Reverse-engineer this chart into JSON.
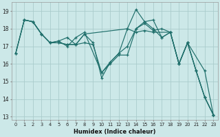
{
  "xlabel": "Humidex (Indice chaleur)",
  "xlim": [
    -0.5,
    23.5
  ],
  "ylim": [
    12.8,
    19.5
  ],
  "yticks": [
    13,
    14,
    15,
    16,
    17,
    18,
    19
  ],
  "xticks": [
    0,
    1,
    2,
    3,
    4,
    5,
    6,
    7,
    8,
    9,
    10,
    11,
    12,
    13,
    14,
    15,
    16,
    17,
    18,
    19,
    20,
    21,
    22,
    23
  ],
  "bg_color": "#cce8e8",
  "grid_color": "#aacccc",
  "line_color": "#1e6e6a",
  "lines": [
    {
      "x": [
        0,
        1,
        2,
        3,
        4,
        5,
        6,
        7,
        8,
        9,
        10,
        11,
        12,
        13,
        14,
        15,
        16,
        17,
        18,
        19,
        20,
        21,
        22,
        23
      ],
      "y": [
        16.6,
        18.5,
        18.4,
        17.7,
        17.2,
        17.2,
        17.1,
        17.1,
        17.2,
        17.1,
        15.5,
        16.0,
        16.5,
        16.5,
        18.0,
        18.3,
        17.9,
        18.0,
        17.8,
        16.0,
        17.2,
        15.6,
        14.1,
        13.1
      ]
    },
    {
      "x": [
        0,
        1,
        2,
        3,
        4,
        5,
        6,
        7,
        8,
        9,
        10,
        11,
        12,
        13,
        14,
        15,
        16,
        17,
        18,
        19,
        20,
        21,
        22,
        23
      ],
      "y": [
        16.6,
        18.5,
        18.4,
        17.7,
        17.2,
        17.3,
        17.5,
        17.1,
        17.7,
        17.2,
        15.2,
        16.1,
        16.6,
        18.0,
        19.1,
        18.4,
        18.0,
        17.5,
        17.8,
        16.0,
        17.2,
        15.6,
        14.1,
        13.1
      ]
    },
    {
      "x": [
        0,
        1,
        2,
        3,
        4,
        5,
        6,
        7,
        8,
        10,
        11,
        12,
        13,
        14,
        15,
        16,
        17,
        18,
        19,
        20,
        21,
        22,
        23
      ],
      "y": [
        16.6,
        18.5,
        18.4,
        17.7,
        17.2,
        17.3,
        17.0,
        17.5,
        17.8,
        15.5,
        16.1,
        16.6,
        17.0,
        18.0,
        18.4,
        18.5,
        17.5,
        17.8,
        16.0,
        17.2,
        15.6,
        14.1,
        13.1
      ]
    },
    {
      "x": [
        1,
        2,
        3,
        4,
        5,
        6,
        7,
        8,
        13,
        14,
        15,
        16,
        18,
        19,
        20,
        22,
        23
      ],
      "y": [
        18.5,
        18.4,
        17.7,
        17.2,
        17.2,
        17.1,
        17.1,
        17.7,
        18.0,
        17.8,
        17.9,
        17.8,
        17.8,
        16.0,
        17.2,
        15.6,
        13.1
      ]
    }
  ]
}
